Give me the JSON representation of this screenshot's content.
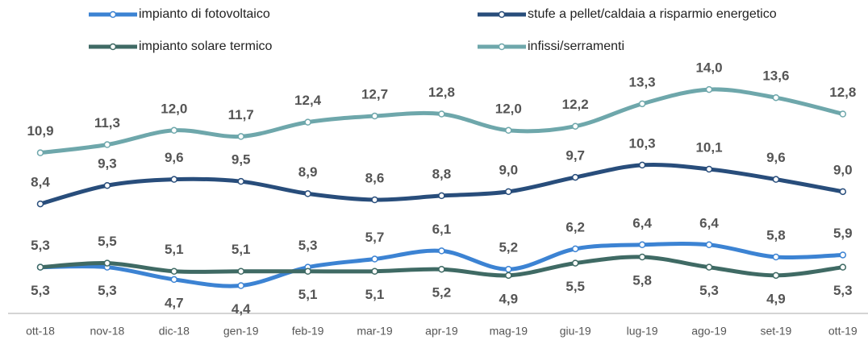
{
  "chart_data": {
    "type": "line",
    "categories": [
      "ott-18",
      "nov-18",
      "dic-18",
      "gen-19",
      "feb-19",
      "mar-19",
      "apr-19",
      "mag-19",
      "giu-19",
      "lug-19",
      "ago-19",
      "set-19",
      "ott-19"
    ],
    "ylim": [
      3,
      17
    ],
    "series": [
      {
        "name": "impianto di fotovoltaico",
        "color": "#3c83d3",
        "values": [
          5.3,
          5.3,
          4.7,
          4.4,
          5.3,
          5.7,
          6.1,
          5.2,
          6.2,
          6.4,
          6.4,
          5.8,
          5.9
        ],
        "value_labels": [
          "5,3",
          "5,3",
          "4,7",
          "4,4",
          "5,3",
          "5,7",
          "6,1",
          "5,2",
          "6,2",
          "6,4",
          "6,4",
          "5,8",
          "5,9"
        ]
      },
      {
        "name": "stufe a pellet/caldaia a risparmio energetico",
        "color": "#284d7b",
        "values": [
          8.4,
          9.3,
          9.6,
          9.5,
          8.9,
          8.6,
          8.8,
          9.0,
          9.7,
          10.3,
          10.1,
          9.6,
          9.0
        ],
        "value_labels": [
          "8,4",
          "9,3",
          "9,6",
          "9,5",
          "8,9",
          "8,6",
          "8,8",
          "9,0",
          "9,7",
          "10,3",
          "10,1",
          "9,6",
          "9,0"
        ]
      },
      {
        "name": "impianto solare termico",
        "color": "#3f6a64",
        "values": [
          5.3,
          5.5,
          5.1,
          5.1,
          5.1,
          5.1,
          5.2,
          4.9,
          5.5,
          5.8,
          5.3,
          4.9,
          5.3
        ],
        "value_labels": [
          "5,3",
          "5,5",
          "5,1",
          "5,1",
          "5,1",
          "5,1",
          "5,2",
          "4,9",
          "5,5",
          "5,8",
          "5,3",
          "4,9",
          "5,3"
        ]
      },
      {
        "name": "infissi/serramenti",
        "color": "#6ea7ab",
        "values": [
          10.9,
          11.3,
          12.0,
          11.7,
          12.4,
          12.7,
          12.8,
          12.0,
          12.2,
          13.3,
          14.0,
          13.6,
          12.8
        ],
        "value_labels": [
          "10,9",
          "11,3",
          "12,0",
          "11,7",
          "12,4",
          "12,7",
          "12,8",
          "12,0",
          "12,2",
          "13,3",
          "14,0",
          "13,6",
          "12,8"
        ]
      }
    ]
  }
}
